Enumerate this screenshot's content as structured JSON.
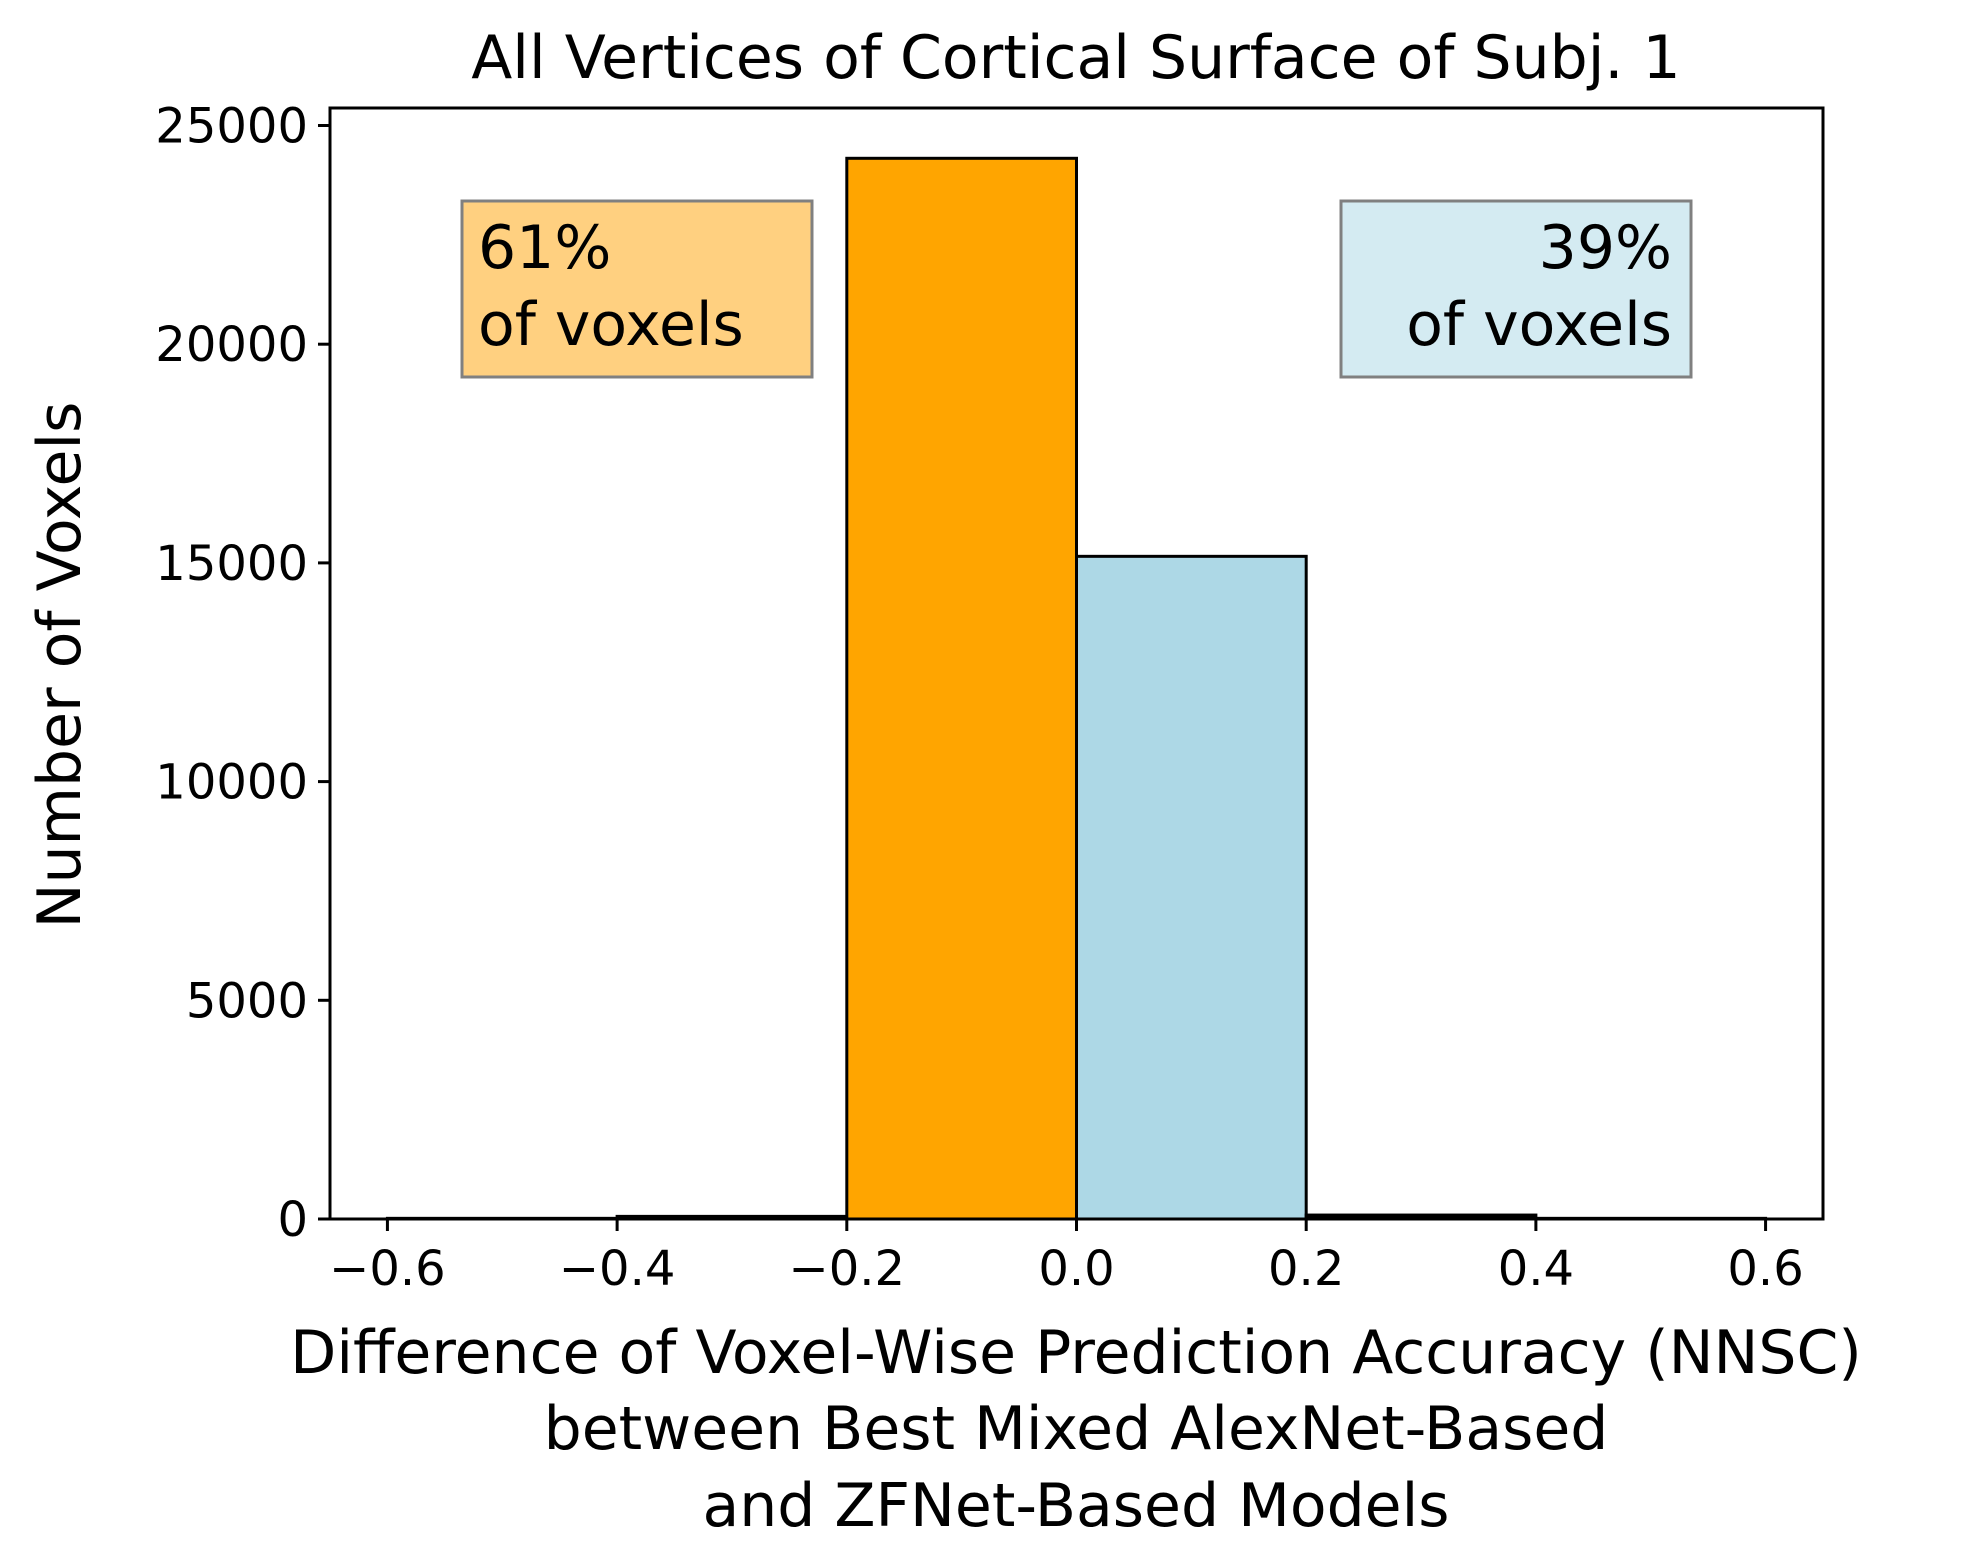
{
  "chart_data": {
    "type": "bar",
    "title": "All Vertices of Cortical Surface of Subj. 1",
    "xlabel": [
      "Difference of Voxel-Wise Prediction Accuracy (NNSC)",
      "between Best Mixed AlexNet-Based",
      "and ZFNet-Based Models"
    ],
    "ylabel": "Number of Voxels",
    "xlim": [
      -0.65,
      0.65
    ],
    "ylim": [
      0,
      25400
    ],
    "xticks": [
      -0.6,
      -0.4,
      -0.2,
      0.0,
      0.2,
      0.4,
      0.6
    ],
    "xtick_labels": [
      "−0.6",
      "−0.4",
      "−0.2",
      "0.0",
      "0.2",
      "0.4",
      "0.6"
    ],
    "yticks": [
      0,
      5000,
      10000,
      15000,
      20000,
      25000
    ],
    "ytick_labels": [
      "0",
      "5000",
      "10000",
      "15000",
      "20000",
      "25000"
    ],
    "grid": false,
    "bins": [
      {
        "x0": -0.6,
        "x1": -0.4,
        "value": 15,
        "color": "#000000"
      },
      {
        "x0": -0.4,
        "x1": -0.2,
        "value": 60,
        "color": "#000000"
      },
      {
        "x0": -0.2,
        "x1": 0.0,
        "value": 24250,
        "color": "#FFA500"
      },
      {
        "x0": 0.0,
        "x1": 0.2,
        "value": 15150,
        "color": "#ADD8E6"
      },
      {
        "x0": 0.2,
        "x1": 0.4,
        "value": 90,
        "color": "#000000"
      },
      {
        "x0": 0.4,
        "x1": 0.6,
        "value": 15,
        "color": "#000000"
      }
    ],
    "annotations": [
      {
        "lines": [
          "61%",
          "of voxels"
        ],
        "align": "left",
        "background": "#FFD080",
        "border": "#808080"
      },
      {
        "lines": [
          "39%",
          "of voxels"
        ],
        "align": "right",
        "background": "#D4EBF2",
        "border": "#808080"
      }
    ]
  }
}
